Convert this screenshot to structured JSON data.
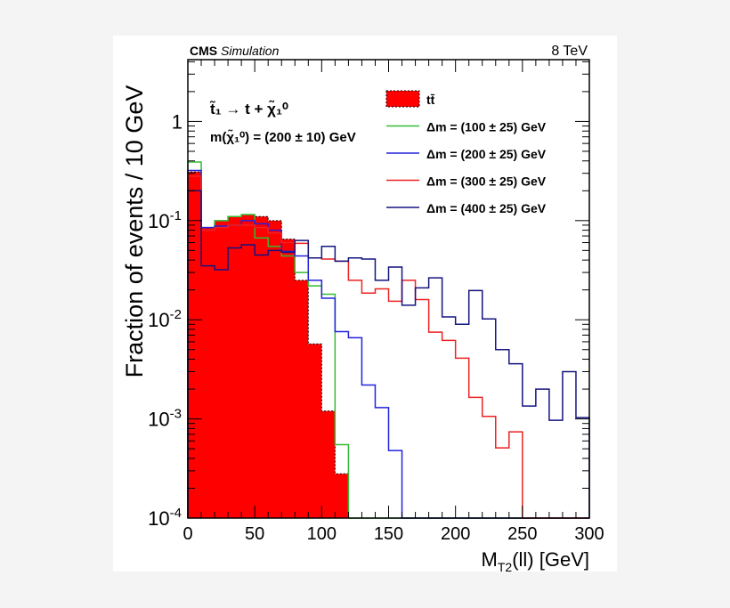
{
  "chart_data": {
    "type": "histogram-step",
    "header_left_bold": "CMS",
    "header_left_italic": "Simulation",
    "header_right": "8 TeV",
    "xlabel": "M",
    "xlabel_sub": "T2",
    "xlabel_rest": "(ll) [GeV]",
    "ylabel": "Fraction of events / 10 GeV",
    "xlim": [
      0,
      300
    ],
    "ylim": [
      0.0001,
      4.2
    ],
    "yscale": "log",
    "bin_width": 10,
    "x_ticks": [
      "0",
      "50",
      "100",
      "150",
      "200",
      "250",
      "300"
    ],
    "y_ticks": [
      {
        "base": "10",
        "exp": "-4"
      },
      {
        "base": "10",
        "exp": "-3"
      },
      {
        "base": "10",
        "exp": "-2"
      },
      {
        "base": "10",
        "exp": "-1"
      },
      {
        "base": "1",
        "exp": ""
      }
    ],
    "annotation_line1": "t̃₁ → t + χ̃₁⁰",
    "annotation_line2": "m(χ̃₁⁰) = (200 ± 10) GeV",
    "legend_position": "top-right",
    "series": [
      {
        "name": "tt̄",
        "style": "filled",
        "color": "#ff0000",
        "values": [
          0.31,
          0.085,
          0.1,
          0.11,
          0.115,
          0.11,
          0.1,
          0.065,
          0.025,
          0.0057,
          0.0012,
          0.00028,
          0,
          0,
          0,
          0,
          0,
          0,
          0,
          0,
          0,
          0,
          0,
          0,
          0,
          0,
          0,
          0,
          0,
          0
        ]
      },
      {
        "name": "Δm = (100 ± 25) GeV",
        "style": "line",
        "color": "#33bb33",
        "values": [
          0.39,
          0.085,
          0.1,
          0.11,
          0.115,
          0.067,
          0.055,
          0.044,
          0.03,
          0.022,
          0.0181,
          0.00055,
          0,
          0,
          0,
          0,
          0,
          0,
          0,
          0,
          0,
          0,
          0,
          0,
          0,
          0,
          0,
          0,
          0,
          0
        ]
      },
      {
        "name": "Δm = (200 ± 25) GeV",
        "style": "line",
        "color": "#2222dd",
        "values": [
          0.32,
          0.085,
          0.088,
          0.09,
          0.1,
          0.093,
          0.08,
          0.049,
          0.044,
          0.025,
          0.0165,
          0.0076,
          0.0066,
          0.0022,
          0.0013,
          0.00048,
          0,
          0,
          0,
          0,
          0,
          0,
          0,
          0,
          0,
          0,
          0,
          0,
          0,
          0
        ]
      },
      {
        "name": "Δm = (300 ± 25) GeV",
        "style": "line",
        "color": "#ee2222",
        "values": [
          0.28,
          0.08,
          0.085,
          0.09,
          0.09,
          0.085,
          0.075,
          0.06,
          0.059,
          0.042,
          0.041,
          0.039,
          0.025,
          0.0186,
          0.0205,
          0.0154,
          0.025,
          0.016,
          0.0075,
          0.0062,
          0.0041,
          0.00165,
          0.00106,
          0.00051,
          0.00074,
          0,
          0,
          0,
          0,
          0
        ]
      },
      {
        "name": "Δm = (400 ± 25) GeV",
        "style": "line",
        "color": "#141480",
        "values": [
          0.2,
          0.035,
          0.032,
          0.053,
          0.057,
          0.045,
          0.05,
          0.048,
          0.063,
          0.042,
          0.055,
          0.039,
          0.042,
          0.041,
          0.025,
          0.034,
          0.014,
          0.021,
          0.0265,
          0.0107,
          0.009,
          0.0197,
          0.0102,
          0.005,
          0.0036,
          0.00135,
          0.002,
          0.00097,
          0.003,
          0.00103
        ]
      }
    ]
  }
}
